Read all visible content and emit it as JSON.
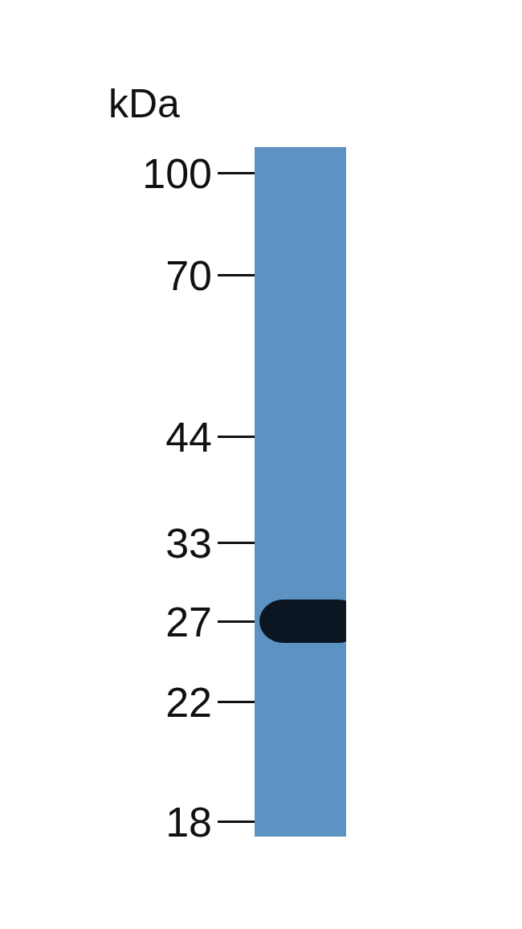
{
  "chart_data": {
    "type": "western_blot",
    "ylabel": "kDa",
    "categories": [
      null
    ],
    "values": [
      27
    ],
    "color": "#0b1622",
    "log": "y",
    "ylim": [
      18,
      100
    ],
    "yticks": [
      100,
      70,
      44,
      33,
      27,
      22,
      18
    ],
    "grid": false
  }
}
